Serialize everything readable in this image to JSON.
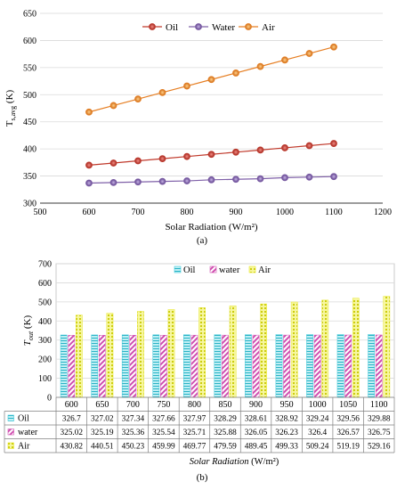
{
  "captions": {
    "a": "(a)",
    "b": "(b)"
  },
  "chart_data": [
    {
      "type": "line",
      "xlabel": "Solar Radiation (W/m²)",
      "ylabel_main": "T",
      "ylabel_sub": "s,avg",
      "ylabel_unit": " (K)",
      "xlim": [
        500,
        1200
      ],
      "ylim": [
        300,
        650
      ],
      "xticks": [
        500,
        600,
        700,
        800,
        900,
        1000,
        1100,
        1200
      ],
      "yticks": [
        300,
        350,
        400,
        450,
        500,
        550,
        600,
        650
      ],
      "grid": true,
      "legend_position": "top-right",
      "x": [
        600,
        650,
        700,
        750,
        800,
        850,
        900,
        950,
        1000,
        1050,
        1100
      ],
      "series": [
        {
          "name": "Oil",
          "color": "#c0392b",
          "values": [
            370,
            374,
            378,
            382,
            386,
            390,
            394,
            398,
            402,
            406,
            410
          ]
        },
        {
          "name": "Water",
          "color": "#7f60a8",
          "values": [
            337,
            338,
            339,
            340,
            341,
            343,
            344,
            345,
            347,
            348,
            349
          ]
        },
        {
          "name": "Air",
          "color": "#e67e22",
          "values": [
            468,
            480,
            492,
            504,
            516,
            528,
            540,
            552,
            564,
            576,
            588
          ]
        }
      ]
    },
    {
      "type": "bar",
      "xlabel": "Solar Radiation",
      "xlabel_unit": " (W/m²)",
      "ylabel_main": "T",
      "ylabel_sub": "out",
      "ylabel_unit": " (K)",
      "ylim": [
        0,
        700
      ],
      "yticks": [
        0,
        100,
        200,
        300,
        400,
        500,
        600,
        700
      ],
      "grid": true,
      "legend_position": "top",
      "categories": [
        "600",
        "650",
        "700",
        "750",
        "800",
        "850",
        "900",
        "950",
        "1000",
        "1050",
        "1100"
      ],
      "series": [
        {
          "name": "Oil",
          "color": "#40c8d8",
          "values": [
            326.7,
            327.02,
            327.34,
            327.66,
            327.97,
            328.29,
            328.61,
            328.92,
            329.24,
            329.56,
            329.88
          ],
          "labels": [
            "326.7",
            "327.02",
            "327.34",
            "327.66",
            "327.97",
            "328.29",
            "328.61",
            "328.92",
            "329.24",
            "329.56",
            "329.88"
          ]
        },
        {
          "name": "water",
          "color": "#d04fb0",
          "values": [
            325.02,
            325.19,
            325.36,
            325.54,
            325.71,
            325.88,
            326.05,
            326.23,
            326.4,
            326.57,
            326.75
          ],
          "labels": [
            "325.02",
            "325.19",
            "325.36",
            "325.54",
            "325.71",
            "325.88",
            "326.05",
            "326.23",
            "326.4",
            "326.57",
            "326.75"
          ]
        },
        {
          "name": "Air",
          "color": "#e6e62a",
          "values": [
            430.82,
            440.51,
            450.23,
            459.99,
            469.77,
            479.59,
            489.45,
            499.33,
            509.24,
            519.19,
            529.16
          ],
          "labels": [
            "430.82",
            "440.51",
            "450.23",
            "459.99",
            "469.77",
            "479.59",
            "489.45",
            "499.33",
            "509.24",
            "519.19",
            "529.16"
          ]
        }
      ]
    }
  ]
}
